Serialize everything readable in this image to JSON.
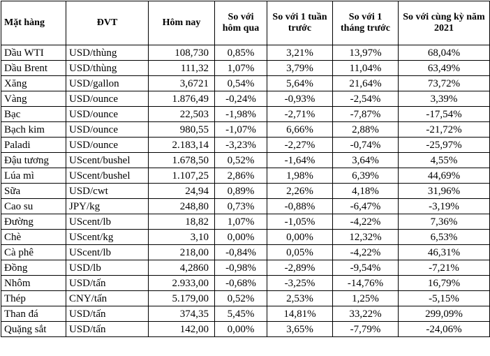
{
  "table": {
    "headers": [
      "Mặt hàng",
      "ĐVT",
      "Hôm nay",
      "So với hôm qua",
      "So với 1 tuần trước",
      "So với 1 tháng trước",
      "So với cùng kỳ năm 2021"
    ],
    "rows": [
      [
        "Dầu WTI",
        "USD/thùng",
        "108,730",
        "0,85%",
        "3,21%",
        "13,97%",
        "68,04%"
      ],
      [
        "Dầu Brent",
        "USD/thùng",
        "111,32",
        "1,07%",
        "3,79%",
        "11,04%",
        "63,49%"
      ],
      [
        "Xăng",
        "USD/gallon",
        "3,6721",
        "0,54%",
        "5,64%",
        "21,64%",
        "73,72%"
      ],
      [
        "Vàng",
        "USD/ounce",
        "1.876,49",
        "-0,24%",
        "-0,93%",
        "-2,54%",
        "3,39%"
      ],
      [
        "Bạc",
        "USD/ounce",
        "22,503",
        "-1,98%",
        "-2,71%",
        "-7,87%",
        "-17,54%"
      ],
      [
        "Bạch kim",
        "USD/ounce",
        "980,55",
        "-1,07%",
        "6,66%",
        "2,88%",
        "-21,72%"
      ],
      [
        "Paladi",
        "USD/ounce",
        "2.183,14",
        "-3,23%",
        "-2,27%",
        "-0,74%",
        "-25,97%"
      ],
      [
        "Đậu tương",
        "UScent/bushel",
        "1.678,50",
        "0,52%",
        "-1,64%",
        "3,64%",
        "4,55%"
      ],
      [
        "Lúa mì",
        "UScent/bushel",
        "1.107,25",
        "2,86%",
        "1,98%",
        "6,39%",
        "44,69%"
      ],
      [
        "Sữa",
        "USD/cwt",
        "24,94",
        "0,89%",
        "2,26%",
        "4,18%",
        "31,96%"
      ],
      [
        "Cao su",
        "JPY/kg",
        "248,80",
        "0,73%",
        "-0,88%",
        "-6,47%",
        "-3,19%"
      ],
      [
        "Đường",
        "UScent/lb",
        "18,82",
        "1,07%",
        "-1,05%",
        "-4,22%",
        "7,36%"
      ],
      [
        "Chè",
        "UScent/kg",
        "3,10",
        "0,00%",
        "0,00%",
        "12,32%",
        "6,53%"
      ],
      [
        "Cà phê",
        "UScent/lb",
        "218,00",
        "-0,84%",
        "0,05%",
        "-4,22%",
        "46,31%"
      ],
      [
        "Đồng",
        "USD/lb",
        "4,2860",
        "-0,98%",
        "-2,89%",
        "-9,54%",
        "-7,21%"
      ],
      [
        "Nhôm",
        "USD/tấn",
        "2.933,00",
        "-0,68%",
        "-3,25%",
        "-14,76%",
        "16,79%"
      ],
      [
        "Thép",
        "CNY/tấn",
        "5.179,00",
        "0,52%",
        "2,53%",
        "1,25%",
        "-5,15%"
      ],
      [
        "Than đá",
        "USD/tấn",
        "374,35",
        "5,45%",
        "14,81%",
        "33,22%",
        "299,09%"
      ],
      [
        "Quặng sắt",
        "USD/tấn",
        "142,00",
        "0,00%",
        "3,65%",
        "-7,79%",
        "-24,06%"
      ]
    ]
  }
}
